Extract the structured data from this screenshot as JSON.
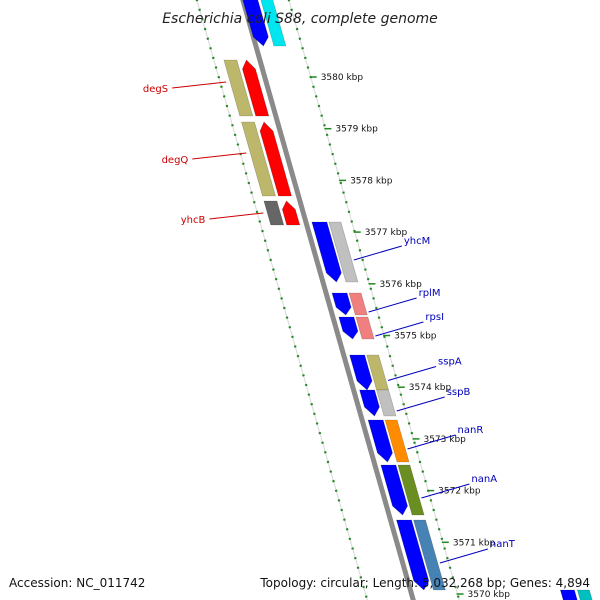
{
  "title": "Escherichia coli S88, complete genome",
  "footer": {
    "accession": "Accession: NC_011742",
    "summary": "Topology: circular; Length: 5,032,268 bp; Genes: 4,894"
  },
  "colors": {
    "reverse_label": "#cc0000",
    "forward_label": "#0000bb",
    "ring_dots": "#228822",
    "backbone": "#8a8a8a"
  },
  "ticks": [
    {
      "label": "3580 kbp"
    },
    {
      "label": "3579 kbp"
    },
    {
      "label": "3578 kbp"
    },
    {
      "label": "3577 kbp"
    },
    {
      "label": "3576 kbp"
    },
    {
      "label": "3575 kbp"
    },
    {
      "label": "3574 kbp"
    },
    {
      "label": "3573 kbp"
    },
    {
      "label": "3572 kbp"
    },
    {
      "label": "3571 kbp"
    },
    {
      "label": "3570 kbp"
    }
  ],
  "reverse_genes": [
    {
      "name": "degS",
      "arrow_color": "#ff0000",
      "cog_color": "#bdb76b"
    },
    {
      "name": "degQ",
      "arrow_color": "#ff0000",
      "cog_color": "#bdb76b"
    },
    {
      "name": "yhcB",
      "arrow_color": "#ff0000",
      "cog_color": "#666666"
    }
  ],
  "forward_genes": [
    {
      "name": "yhcM",
      "arrow_color": "#0000ff",
      "cog_color": "#c0c0c0"
    },
    {
      "name": "rplM",
      "arrow_color": "#0000ff",
      "cog_color": "#f08080"
    },
    {
      "name": "rpsI",
      "arrow_color": "#0000ff",
      "cog_color": "#f08080"
    },
    {
      "name": "sspA",
      "arrow_color": "#0000ff",
      "cog_color": "#bdb76b"
    },
    {
      "name": "sspB",
      "arrow_color": "#0000ff",
      "cog_color": "#c0c0c0"
    },
    {
      "name": "nanR",
      "arrow_color": "#0000ff",
      "cog_color": "#ff8c00"
    },
    {
      "name": "nanA",
      "arrow_color": "#0000ff",
      "cog_color": "#6b8e23"
    },
    {
      "name": "nanT",
      "arrow_color": "#0000ff",
      "cog_color": "#4682b4"
    }
  ]
}
